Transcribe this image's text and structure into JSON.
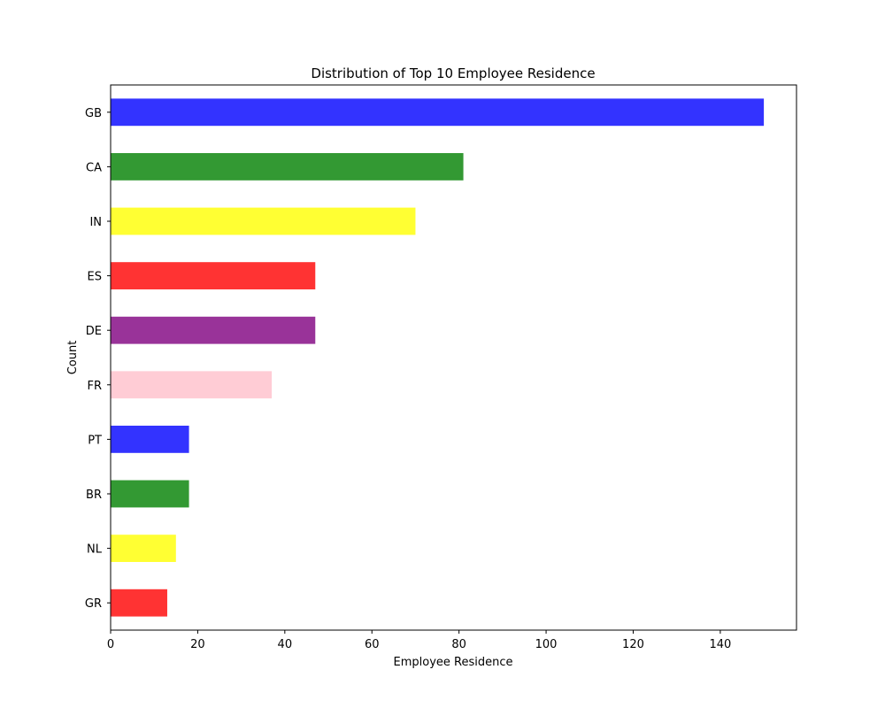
{
  "chart_data": {
    "type": "bar",
    "orientation": "horizontal",
    "title": "Distribution of Top 10 Employee Residence",
    "xlabel": "Employee Residence",
    "ylabel": "Count",
    "categories": [
      "GB",
      "CA",
      "IN",
      "ES",
      "DE",
      "FR",
      "PT",
      "BR",
      "NL",
      "GR"
    ],
    "values": [
      150,
      81,
      70,
      47,
      47,
      37,
      18,
      18,
      15,
      13
    ],
    "colors": [
      "#3333ff",
      "#339933",
      "#ffff33",
      "#ff3333",
      "#993399",
      "#ffccd5",
      "#3333ff",
      "#339933",
      "#ffff33",
      "#ff3333"
    ],
    "xlim": [
      0,
      157.5
    ],
    "xticks": [
      0,
      20,
      40,
      60,
      80,
      100,
      120,
      140
    ],
    "grid": false,
    "legend": "none"
  }
}
